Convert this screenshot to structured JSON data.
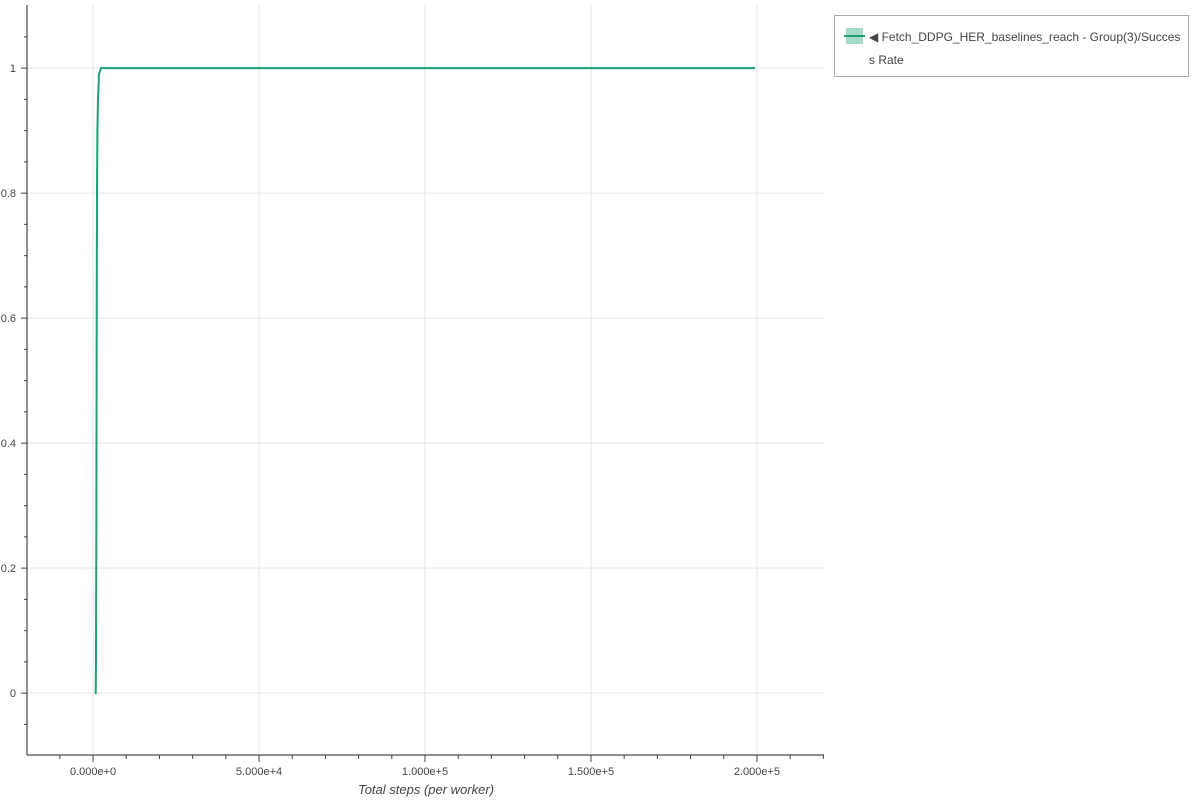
{
  "chart_data": {
    "type": "line",
    "xlabel": "Total steps (per worker)",
    "ylabel": "",
    "xlim": [
      -19900,
      220200
    ],
    "ylim": [
      -0.099,
      1.101
    ],
    "x_ticks": [
      0,
      50000,
      100000,
      150000,
      200000
    ],
    "x_tick_labels": [
      "0.000e+0",
      "5.000e+4",
      "1.000e+5",
      "1.500e+5",
      "2.000e+5"
    ],
    "y_ticks": [
      0,
      0.2,
      0.4,
      0.6,
      0.8,
      1
    ],
    "y_tick_labels": [
      "0",
      "0.2",
      "0.4",
      "0.6",
      "0.8",
      "1"
    ],
    "grid": true,
    "legend_position": "outside-top-right",
    "series": [
      {
        "name": "◀ Fetch_DDPG_HER_baselines_reach - Group(3)/Success Rate",
        "color": "#1f9e77",
        "x": [
          500,
          800,
          900,
          1000,
          1100,
          1200,
          1300,
          1500,
          1800,
          2400,
          199400
        ],
        "y": [
          0,
          0,
          0.05,
          0.3,
          0.6,
          0.8,
          0.9,
          0.95,
          0.99,
          1,
          1
        ]
      }
    ]
  }
}
